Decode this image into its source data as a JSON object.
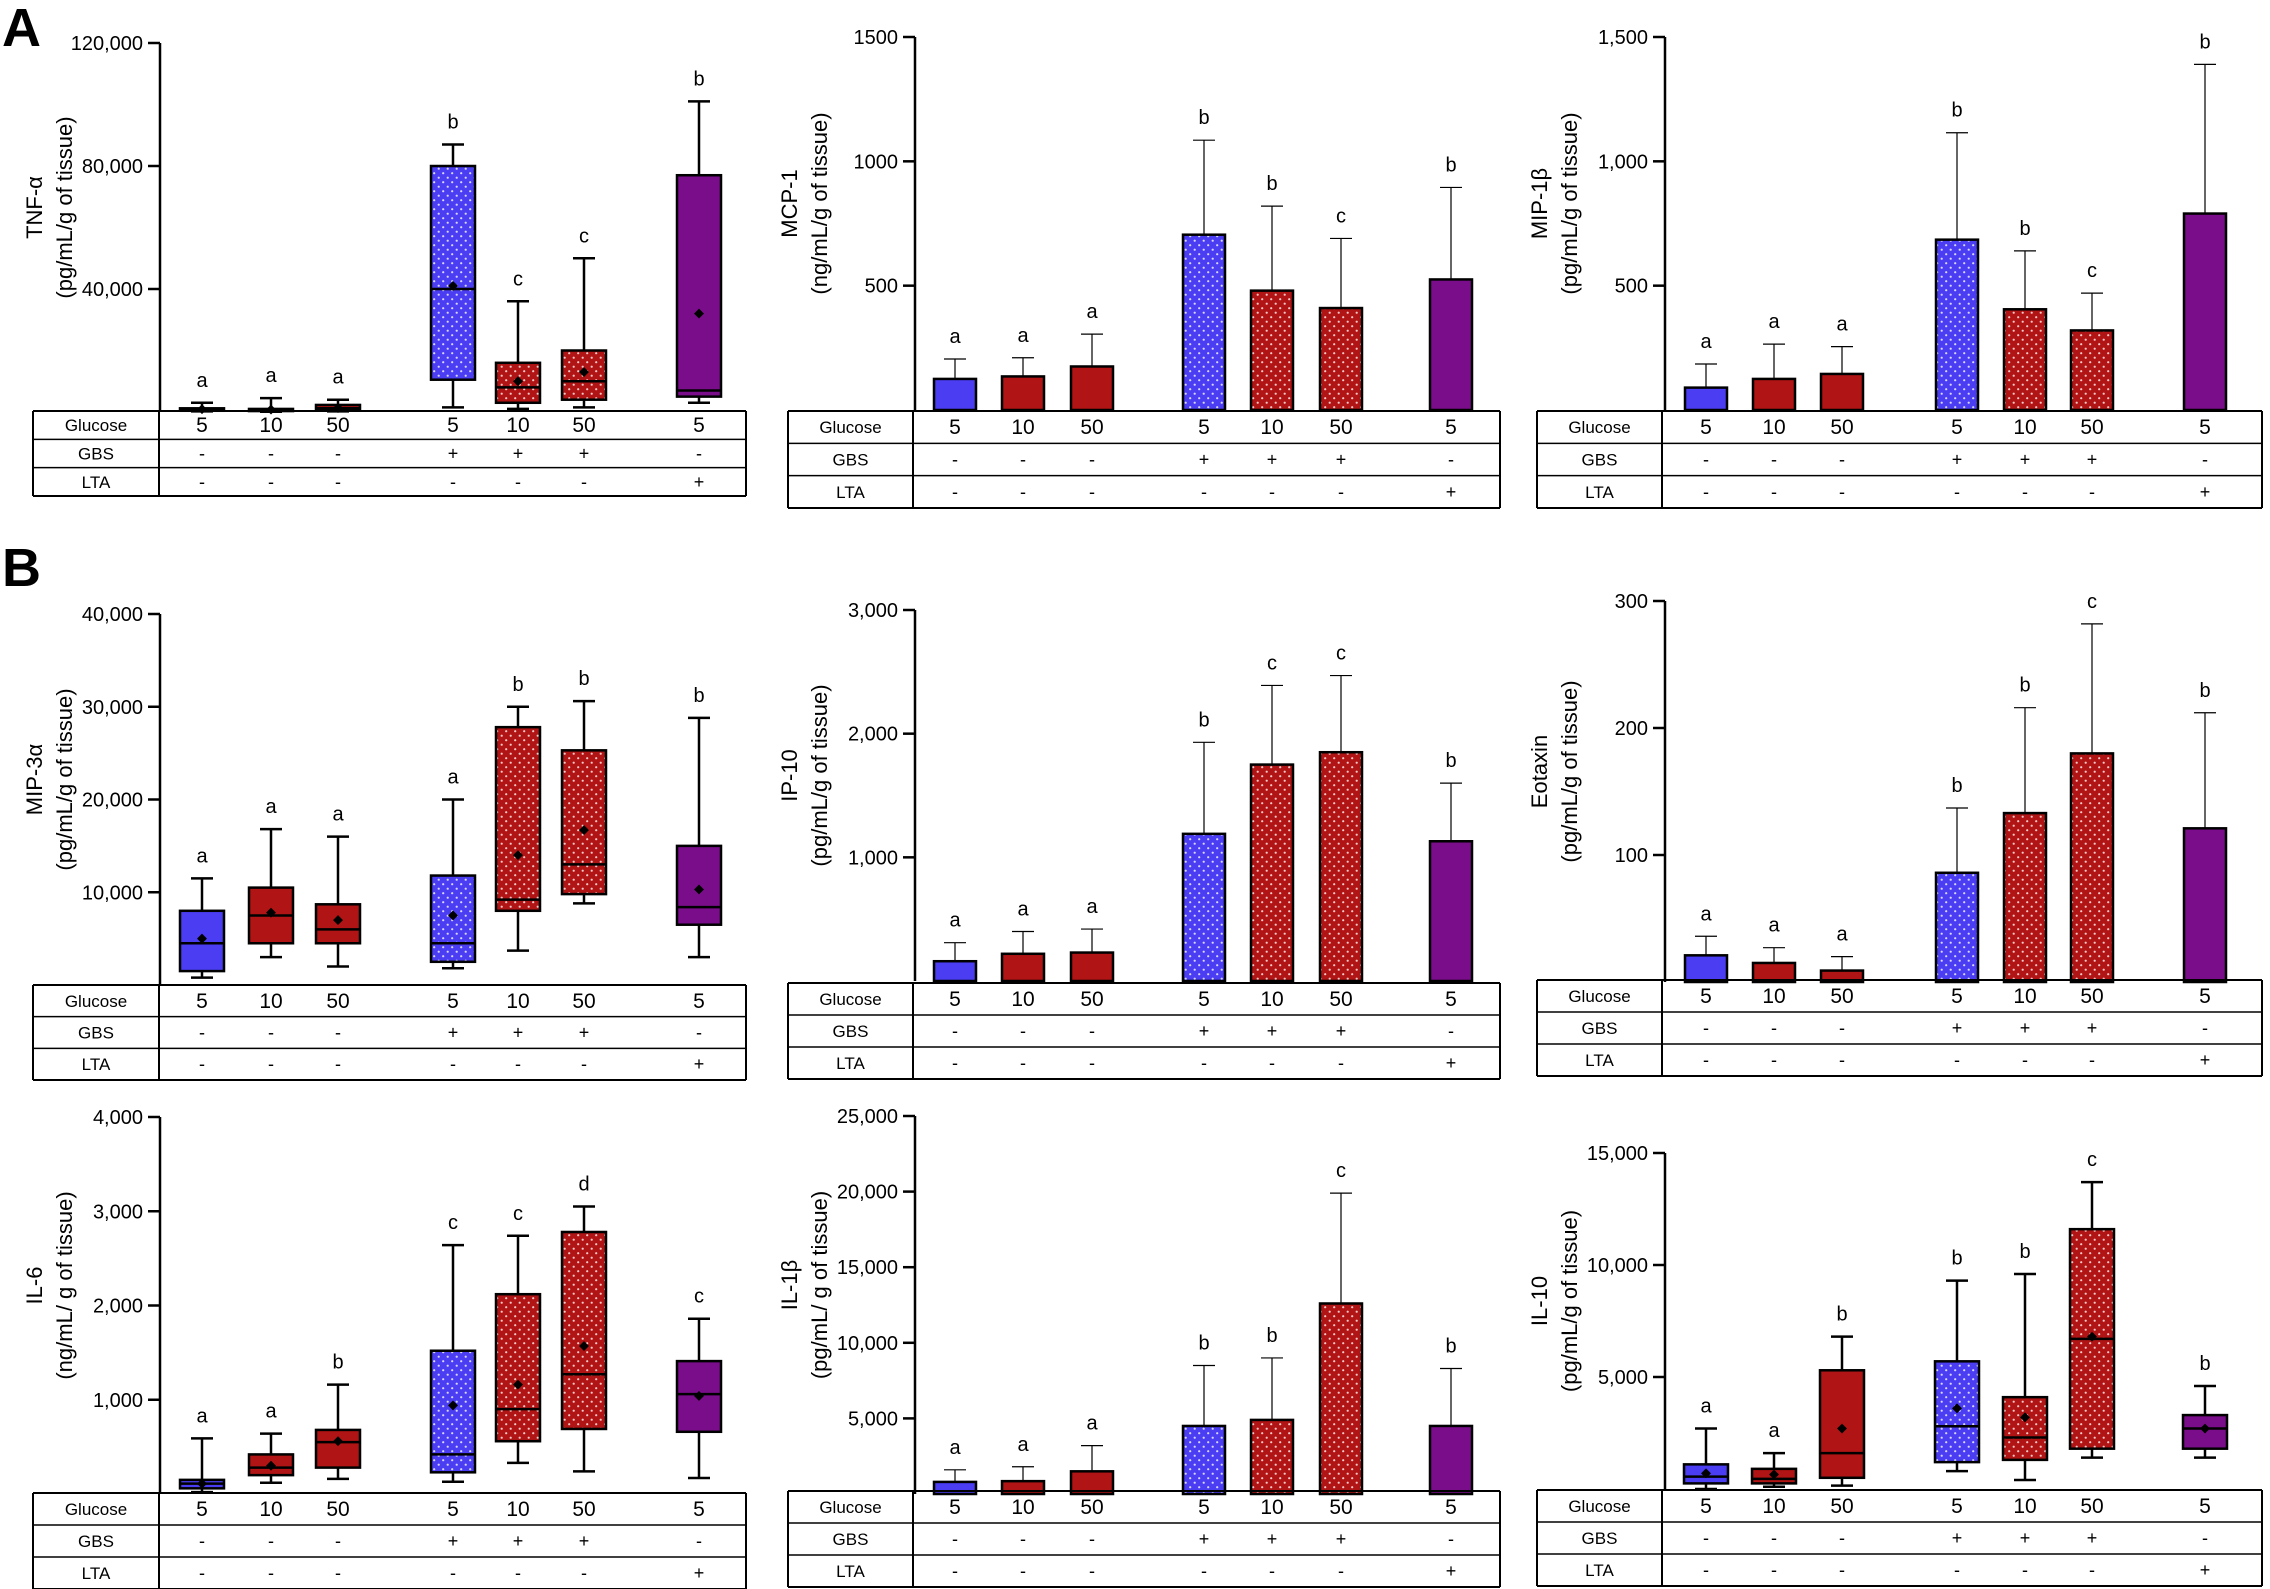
{
  "figure": {
    "panel_labels": [
      "A",
      "B"
    ],
    "colors": {
      "blue": "#4a3df2",
      "red": "#b01414",
      "purple": "#7a0e8a",
      "blue_dot": "#d8d8ff",
      "red_dot": "#f3c9c9"
    },
    "table": {
      "row_labels": [
        "Glucose",
        "GBS",
        "LTA"
      ],
      "glucose": [
        "5",
        "10",
        "50",
        "5",
        "10",
        "50",
        "5"
      ],
      "gbs": [
        "-",
        "-",
        "-",
        "+",
        "+",
        "+",
        "-"
      ],
      "lta": [
        "-",
        "-",
        "-",
        "-",
        "-",
        "-",
        "+"
      ]
    }
  },
  "chart_data": [
    {
      "id": "tnf",
      "type": "box",
      "title": "",
      "ylabel_line1": "TNF-α",
      "ylabel_line2": "(pg/mL/g of tissue)",
      "ylim": [
        0,
        120000
      ],
      "yticks": [
        40000,
        80000,
        120000
      ],
      "ytick_labels": [
        "40,000",
        "80,000",
        "120,000"
      ],
      "groups": [
        {
          "color": "blue",
          "dotted": false,
          "min": 200,
          "q1": 400,
          "median": 700,
          "q3": 1200,
          "max": 3000,
          "mean": 900,
          "letter": "a"
        },
        {
          "color": "red",
          "dotted": false,
          "min": 100,
          "q1": 300,
          "median": 600,
          "q3": 1000,
          "max": 4500,
          "mean": 800,
          "letter": "a"
        },
        {
          "color": "red",
          "dotted": false,
          "min": 200,
          "q1": 600,
          "median": 1200,
          "q3": 2300,
          "max": 4000,
          "mean": 1300,
          "letter": "a"
        },
        {
          "color": "blue",
          "dotted": true,
          "min": 1500,
          "q1": 10500,
          "median": 40000,
          "q3": 80000,
          "max": 87000,
          "mean": 41000,
          "letter": "b"
        },
        {
          "color": "red",
          "dotted": true,
          "min": 1000,
          "q1": 3000,
          "median": 8000,
          "q3": 16000,
          "max": 36000,
          "mean": 10000,
          "letter": "c"
        },
        {
          "color": "red",
          "dotted": true,
          "min": 1500,
          "q1": 4000,
          "median": 10000,
          "q3": 20000,
          "max": 50000,
          "mean": 13000,
          "letter": "c"
        },
        {
          "color": "purple",
          "dotted": false,
          "min": 3000,
          "q1": 5000,
          "median": 7000,
          "q3": 77000,
          "max": 101000,
          "mean": 32000,
          "letter": "b"
        }
      ]
    },
    {
      "id": "mcp1",
      "type": "bar",
      "title": "",
      "ylabel_line1": "MCP-1",
      "ylabel_line2": "(ng/mL/g of tissue)",
      "ylim": [
        0,
        1500
      ],
      "yticks": [
        500,
        1000,
        1500
      ],
      "ytick_labels": [
        "500",
        "1000",
        "1500"
      ],
      "groups": [
        {
          "color": "blue",
          "dotted": false,
          "value": 125,
          "err": 205,
          "letter": "a"
        },
        {
          "color": "red",
          "dotted": false,
          "value": 135,
          "err": 210,
          "letter": "a"
        },
        {
          "color": "red",
          "dotted": false,
          "value": 175,
          "err": 305,
          "letter": "a"
        },
        {
          "color": "blue",
          "dotted": true,
          "value": 705,
          "err": 1085,
          "letter": "b"
        },
        {
          "color": "red",
          "dotted": true,
          "value": 480,
          "err": 820,
          "letter": "b"
        },
        {
          "color": "red",
          "dotted": true,
          "value": 410,
          "err": 690,
          "letter": "c"
        },
        {
          "color": "purple",
          "dotted": false,
          "value": 525,
          "err": 895,
          "letter": "b"
        }
      ]
    },
    {
      "id": "mip1b",
      "type": "bar",
      "title": "",
      "ylabel_line1": "MIP-1β",
      "ylabel_line2": "(pg/mL/g of tissue)",
      "ylim": [
        0,
        1500
      ],
      "yticks": [
        500,
        1000,
        1500
      ],
      "ytick_labels": [
        "500",
        "1,000",
        "1,500"
      ],
      "groups": [
        {
          "color": "blue",
          "dotted": false,
          "value": 90,
          "err": 185,
          "letter": "a"
        },
        {
          "color": "red",
          "dotted": false,
          "value": 125,
          "err": 265,
          "letter": "a"
        },
        {
          "color": "red",
          "dotted": false,
          "value": 145,
          "err": 255,
          "letter": "a"
        },
        {
          "color": "blue",
          "dotted": true,
          "value": 685,
          "err": 1115,
          "letter": "b"
        },
        {
          "color": "red",
          "dotted": true,
          "value": 405,
          "err": 640,
          "letter": "b"
        },
        {
          "color": "red",
          "dotted": true,
          "value": 320,
          "err": 470,
          "letter": "c"
        },
        {
          "color": "purple",
          "dotted": false,
          "value": 790,
          "err": 1390,
          "letter": "b"
        }
      ]
    },
    {
      "id": "mip3a",
      "type": "box",
      "title": "",
      "ylabel_line1": "MIP-3α",
      "ylabel_line2": "(pg/mL/g of tissue)",
      "ylim": [
        0,
        40000
      ],
      "yticks": [
        10000,
        20000,
        30000,
        40000
      ],
      "ytick_labels": [
        "10,000",
        "20,000",
        "30,000",
        "40,000"
      ],
      "groups": [
        {
          "color": "blue",
          "dotted": false,
          "min": 800,
          "q1": 1500,
          "median": 4500,
          "q3": 8000,
          "max": 11500,
          "mean": 5000,
          "letter": "a"
        },
        {
          "color": "red",
          "dotted": false,
          "min": 3000,
          "q1": 4500,
          "median": 7500,
          "q3": 10500,
          "max": 16800,
          "mean": 7800,
          "letter": "a"
        },
        {
          "color": "red",
          "dotted": false,
          "min": 2000,
          "q1": 4500,
          "median": 6000,
          "q3": 8700,
          "max": 16000,
          "mean": 7000,
          "letter": "a"
        },
        {
          "color": "blue",
          "dotted": true,
          "min": 1800,
          "q1": 2500,
          "median": 4500,
          "q3": 11800,
          "max": 20000,
          "mean": 7500,
          "letter": "a"
        },
        {
          "color": "red",
          "dotted": true,
          "min": 3700,
          "q1": 8000,
          "median": 9200,
          "q3": 27800,
          "max": 30000,
          "mean": 14000,
          "letter": "b"
        },
        {
          "color": "red",
          "dotted": true,
          "min": 8800,
          "q1": 9800,
          "median": 13000,
          "q3": 25300,
          "max": 30600,
          "mean": 16700,
          "letter": "b"
        },
        {
          "color": "purple",
          "dotted": false,
          "min": 3000,
          "q1": 6500,
          "median": 8400,
          "q3": 15000,
          "max": 28800,
          "mean": 10300,
          "letter": "b"
        }
      ]
    },
    {
      "id": "ip10",
      "type": "bar",
      "title": "",
      "ylabel_line1": "IP-10",
      "ylabel_line2": "(pg/mL/g of tissue)",
      "ylim": [
        0,
        3000
      ],
      "yticks": [
        1000,
        2000,
        3000
      ],
      "ytick_labels": [
        "1,000",
        "2,000",
        "3,000"
      ],
      "groups": [
        {
          "color": "blue",
          "dotted": false,
          "value": 160,
          "err": 310,
          "letter": "a"
        },
        {
          "color": "red",
          "dotted": false,
          "value": 220,
          "err": 400,
          "letter": "a"
        },
        {
          "color": "red",
          "dotted": false,
          "value": 230,
          "err": 420,
          "letter": "a"
        },
        {
          "color": "blue",
          "dotted": true,
          "value": 1190,
          "err": 1930,
          "letter": "b"
        },
        {
          "color": "red",
          "dotted": true,
          "value": 1750,
          "err": 2390,
          "letter": "c"
        },
        {
          "color": "red",
          "dotted": true,
          "value": 1850,
          "err": 2470,
          "letter": "c"
        },
        {
          "color": "purple",
          "dotted": false,
          "value": 1130,
          "err": 1600,
          "letter": "b"
        }
      ]
    },
    {
      "id": "eotaxin",
      "type": "bar",
      "title": "",
      "ylabel_line1": "Eotaxin",
      "ylabel_line2": "(pg/mL/g of tissue)",
      "ylim": [
        0,
        300
      ],
      "yticks": [
        100,
        200,
        300
      ],
      "ytick_labels": [
        "100",
        "200",
        "300"
      ],
      "groups": [
        {
          "color": "blue",
          "dotted": false,
          "value": 21,
          "err": 36,
          "letter": "a"
        },
        {
          "color": "red",
          "dotted": false,
          "value": 15,
          "err": 27,
          "letter": "a"
        },
        {
          "color": "red",
          "dotted": false,
          "value": 9,
          "err": 20,
          "letter": "a"
        },
        {
          "color": "blue",
          "dotted": true,
          "value": 86,
          "err": 137,
          "letter": "b"
        },
        {
          "color": "red",
          "dotted": true,
          "value": 133,
          "err": 216,
          "letter": "b"
        },
        {
          "color": "red",
          "dotted": true,
          "value": 180,
          "err": 282,
          "letter": "c"
        },
        {
          "color": "purple",
          "dotted": false,
          "value": 121,
          "err": 212,
          "letter": "b"
        }
      ]
    },
    {
      "id": "il6",
      "type": "box",
      "title": "",
      "ylabel_line1": "IL-6",
      "ylabel_line2": "(ng/mL/ g of tissue)",
      "ylim": [
        0,
        4000
      ],
      "yticks": [
        1000,
        2000,
        3000,
        4000
      ],
      "ytick_labels": [
        "1,000",
        "2,000",
        "3,000",
        "4,000"
      ],
      "groups": [
        {
          "color": "blue",
          "dotted": false,
          "min": 20,
          "q1": 60,
          "median": 110,
          "q3": 150,
          "max": 590,
          "mean": 110,
          "letter": "a"
        },
        {
          "color": "red",
          "dotted": false,
          "min": 120,
          "q1": 200,
          "median": 280,
          "q3": 420,
          "max": 640,
          "mean": 300,
          "letter": "a"
        },
        {
          "color": "red",
          "dotted": false,
          "min": 160,
          "q1": 280,
          "median": 550,
          "q3": 680,
          "max": 1160,
          "mean": 560,
          "letter": "b"
        },
        {
          "color": "blue",
          "dotted": true,
          "min": 130,
          "q1": 230,
          "median": 420,
          "q3": 1520,
          "max": 2640,
          "mean": 940,
          "letter": "c"
        },
        {
          "color": "red",
          "dotted": true,
          "min": 330,
          "q1": 560,
          "median": 900,
          "q3": 2120,
          "max": 2740,
          "mean": 1160,
          "letter": "c"
        },
        {
          "color": "red",
          "dotted": true,
          "min": 240,
          "q1": 690,
          "median": 1270,
          "q3": 2780,
          "max": 3050,
          "mean": 1570,
          "letter": "d"
        },
        {
          "color": "purple",
          "dotted": false,
          "min": 170,
          "q1": 660,
          "median": 1060,
          "q3": 1410,
          "max": 1860,
          "mean": 1040,
          "letter": "c"
        }
      ]
    },
    {
      "id": "il1b",
      "type": "bar",
      "title": "",
      "ylabel_line1": "IL-1β",
      "ylabel_line2": "(pg/mL/ g of tissue)",
      "ylim": [
        0,
        25000
      ],
      "yticks": [
        5000,
        10000,
        15000,
        20000,
        25000
      ],
      "ytick_labels": [
        "5,000",
        "10,000",
        "15,000",
        "20,000",
        "25,000"
      ],
      "groups": [
        {
          "color": "blue",
          "dotted": false,
          "value": 800,
          "err": 1600,
          "letter": "a"
        },
        {
          "color": "red",
          "dotted": false,
          "value": 850,
          "err": 1800,
          "letter": "a"
        },
        {
          "color": "red",
          "dotted": false,
          "value": 1500,
          "err": 3200,
          "letter": "a"
        },
        {
          "color": "blue",
          "dotted": true,
          "value": 4500,
          "err": 8500,
          "letter": "b"
        },
        {
          "color": "red",
          "dotted": true,
          "value": 4900,
          "err": 9000,
          "letter": "b"
        },
        {
          "color": "red",
          "dotted": true,
          "value": 12600,
          "err": 19900,
          "letter": "c"
        },
        {
          "color": "purple",
          "dotted": false,
          "value": 4500,
          "err": 8300,
          "letter": "b"
        }
      ]
    },
    {
      "id": "il10",
      "type": "box",
      "title": "",
      "ylabel_line1": "IL-10",
      "ylabel_line2": "(pg/mL/g of tissue)",
      "ylim": [
        0,
        15000
      ],
      "yticks": [
        5000,
        10000,
        15000
      ],
      "ytick_labels": [
        "5,000",
        "10,000",
        "15,000"
      ],
      "groups": [
        {
          "color": "blue",
          "dotted": false,
          "min": 0,
          "q1": 250,
          "median": 550,
          "q3": 1100,
          "max": 2700,
          "mean": 700,
          "letter": "a"
        },
        {
          "color": "red",
          "dotted": false,
          "min": 100,
          "q1": 250,
          "median": 450,
          "q3": 900,
          "max": 1600,
          "mean": 650,
          "letter": "a"
        },
        {
          "color": "red",
          "dotted": false,
          "min": 150,
          "q1": 500,
          "median": 1600,
          "q3": 5300,
          "max": 6800,
          "mean": 2700,
          "letter": "b"
        },
        {
          "color": "blue",
          "dotted": true,
          "min": 800,
          "q1": 1200,
          "median": 2800,
          "q3": 5700,
          "max": 9300,
          "mean": 3600,
          "letter": "b"
        },
        {
          "color": "red",
          "dotted": true,
          "min": 400,
          "q1": 1300,
          "median": 2300,
          "q3": 4100,
          "max": 9600,
          "mean": 3200,
          "letter": "b"
        },
        {
          "color": "red",
          "dotted": true,
          "min": 1400,
          "q1": 1800,
          "median": 6700,
          "q3": 11600,
          "max": 13700,
          "mean": 6800,
          "letter": "c"
        },
        {
          "color": "purple",
          "dotted": false,
          "min": 1400,
          "q1": 1800,
          "median": 2700,
          "q3": 3300,
          "max": 4600,
          "mean": 2700,
          "letter": "b"
        }
      ]
    }
  ]
}
